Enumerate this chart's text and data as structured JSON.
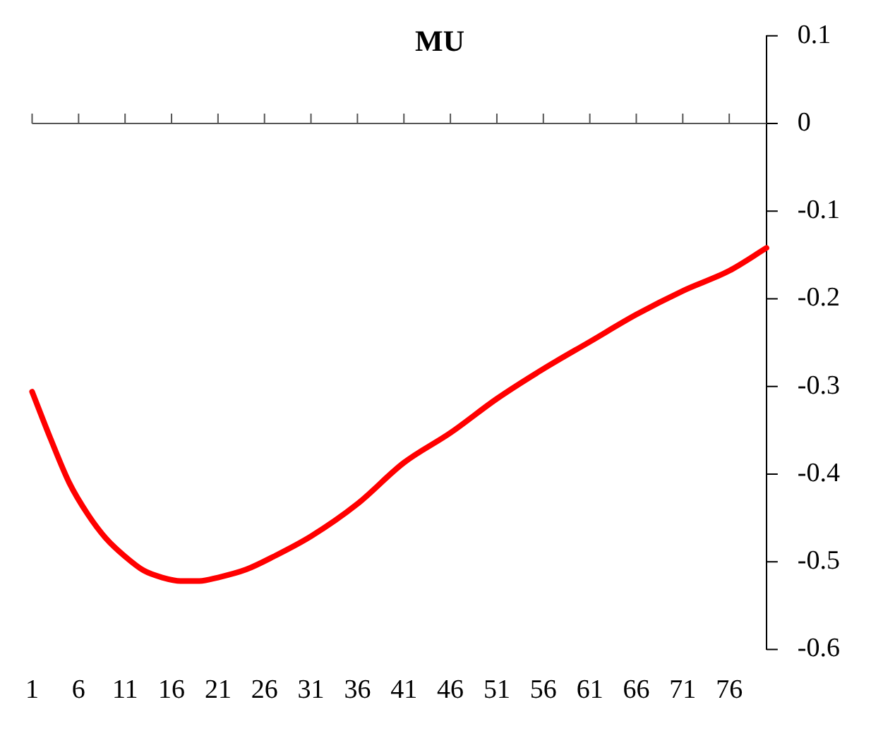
{
  "chart_data": {
    "type": "line",
    "title": "MU",
    "x": [
      1,
      3,
      5,
      7,
      9,
      11,
      13,
      15,
      17,
      19,
      21,
      24,
      27,
      31,
      36,
      41,
      46,
      51,
      56,
      61,
      66,
      71,
      76,
      80
    ],
    "series": [
      {
        "color": "#ff0000",
        "values": [
          -0.306,
          -0.36,
          -0.41,
          -0.446,
          -0.474,
          -0.494,
          -0.51,
          -0.518,
          -0.522,
          -0.522,
          -0.518,
          -0.509,
          -0.494,
          -0.471,
          -0.434,
          -0.387,
          -0.353,
          -0.314,
          -0.28,
          -0.249,
          -0.218,
          -0.191,
          -0.168,
          -0.142
        ]
      }
    ],
    "xlim": [
      1,
      80
    ],
    "xticks": [
      1,
      6,
      11,
      16,
      21,
      26,
      31,
      36,
      41,
      46,
      51,
      56,
      61,
      66,
      71,
      76
    ],
    "ylim": [
      -0.6,
      0.1
    ],
    "yticks": [
      0.1,
      0,
      -0.1,
      -0.2,
      -0.3,
      -0.4,
      -0.5,
      -0.6
    ],
    "ref_lines": [
      {
        "axis": "y",
        "value": 0,
        "color": "#555555"
      }
    ],
    "grid": false,
    "legend": false,
    "marker": "none",
    "line_style": "solid"
  }
}
